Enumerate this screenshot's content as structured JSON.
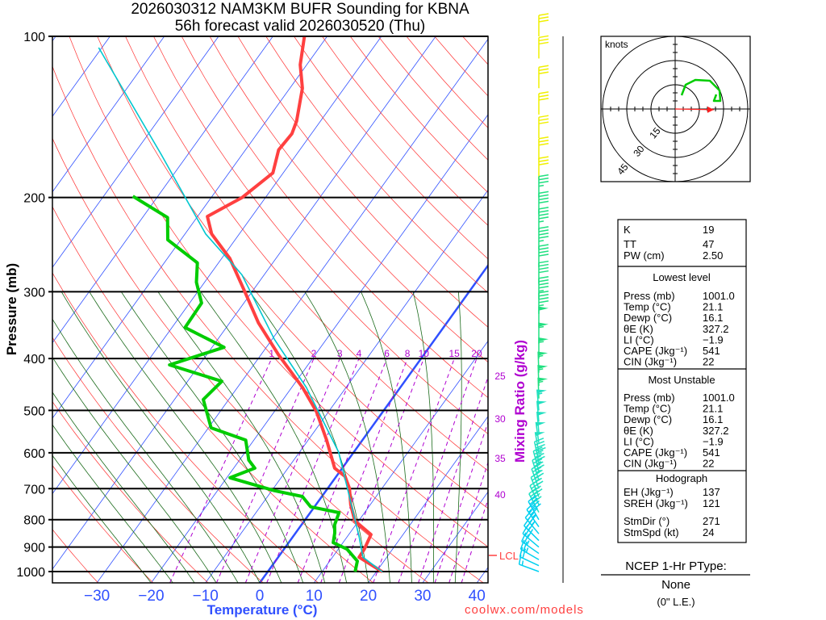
{
  "header": {
    "title_line1": "2026030312 NAM3KM BUFR Sounding for KBNA",
    "title_line2": "56h forecast valid 2026030520 (Thu)"
  },
  "footer": {
    "credit": "coolwx.com/models"
  },
  "colors": {
    "temperature": "#ff4040",
    "dewpoint": "#00cc00",
    "parcel": "#00c8d0",
    "isotherm": "#3050ff",
    "dry_adiabat": "#ff3030",
    "moist_adiabat": "#1a6a1a",
    "mixing_ratio": "#b000d0"
  },
  "chart_data": {
    "type": "line",
    "subtype": "skew-t log-p",
    "xlabel": "Temperature (°C)",
    "ylabel": "Pressure (mb)",
    "mixing_ratio_label": "Mixing Ratio (g/kg)",
    "lcl_label": "LCL",
    "lcl_pressure": 895,
    "pressure_ticks": [
      100,
      200,
      300,
      400,
      500,
      600,
      700,
      800,
      900,
      1000
    ],
    "temperature_ticks": [
      -30,
      -20,
      -10,
      0,
      10,
      20,
      30,
      40
    ],
    "pressure_range": [
      100,
      1050
    ],
    "mixing_ratio_lines": [
      1,
      2,
      3,
      4,
      6,
      8,
      10,
      15,
      20,
      25,
      30,
      35,
      40
    ],
    "series": [
      {
        "name": "Temperature",
        "points": [
          [
            100,
            -64.2
          ],
          [
            113,
            -61.2
          ],
          [
            125,
            -57.7
          ],
          [
            144,
            -54.4
          ],
          [
            152,
            -53.6
          ],
          [
            163,
            -53.9
          ],
          [
            180,
            -51.9
          ],
          [
            200,
            -54.3
          ],
          [
            217,
            -58.2
          ],
          [
            234,
            -55.1
          ],
          [
            260,
            -48.5
          ],
          [
            299,
            -41.5
          ],
          [
            343,
            -34.7
          ],
          [
            394,
            -26.7
          ],
          [
            453,
            -18.0
          ],
          [
            502,
            -12.3
          ],
          [
            568,
            -6.6
          ],
          [
            641,
            -1.4
          ],
          [
            664,
            1.6
          ],
          [
            699,
            4.0
          ],
          [
            750,
            6.4
          ],
          [
            804,
            9.3
          ],
          [
            853,
            14.1
          ],
          [
            908,
            14.8
          ],
          [
            940,
            14.9
          ],
          [
            972,
            18.2
          ],
          [
            1001,
            21.1
          ]
        ]
      },
      {
        "name": "Dewpoint",
        "points": [
          [
            199,
            -74.6
          ],
          [
            218,
            -65.4
          ],
          [
            240,
            -62.4
          ],
          [
            265,
            -53.9
          ],
          [
            288,
            -51.5
          ],
          [
            315,
            -47.8
          ],
          [
            350,
            -47.6
          ],
          [
            381,
            -37.8
          ],
          [
            411,
            -45.5
          ],
          [
            441,
            -33.7
          ],
          [
            477,
            -34.7
          ],
          [
            539,
            -29.5
          ],
          [
            568,
            -21.5
          ],
          [
            619,
            -18.3
          ],
          [
            641,
            -16.1
          ],
          [
            668,
            -19.4
          ],
          [
            706,
            -9.5
          ],
          [
            724,
            -3.6
          ],
          [
            757,
            -0.7
          ],
          [
            776,
            5.3
          ],
          [
            818,
            6.1
          ],
          [
            847,
            7.2
          ],
          [
            883,
            8.2
          ],
          [
            908,
            11.6
          ],
          [
            956,
            15.1
          ],
          [
            1001,
            16.1
          ]
        ]
      },
      {
        "name": "Parcel",
        "points": [
          [
            105,
            -100.6
          ],
          [
            166,
            -75
          ],
          [
            234,
            -56.2
          ],
          [
            279,
            -44.1
          ],
          [
            368,
            -29.6
          ],
          [
            453,
            -17.3
          ],
          [
            598,
            -2.8
          ],
          [
            861,
            12.2
          ],
          [
            940,
            15.6
          ],
          [
            1001,
            21.1
          ]
        ]
      }
    ],
    "winds": [
      [
        100,
        270,
        30
      ],
      [
        110,
        270,
        30
      ],
      [
        125,
        270,
        30
      ],
      [
        140,
        270,
        30
      ],
      [
        155,
        270,
        30
      ],
      [
        170,
        270,
        30
      ],
      [
        185,
        270,
        30
      ],
      [
        200,
        270,
        35
      ],
      [
        215,
        270,
        40
      ],
      [
        230,
        270,
        45
      ],
      [
        250,
        270,
        45
      ],
      [
        270,
        270,
        40
      ],
      [
        290,
        270,
        40
      ],
      [
        310,
        270,
        45
      ],
      [
        330,
        270,
        45
      ],
      [
        350,
        270,
        50
      ],
      [
        375,
        270,
        55
      ],
      [
        400,
        270,
        55
      ],
      [
        425,
        268,
        55
      ],
      [
        450,
        268,
        55
      ],
      [
        475,
        268,
        55
      ],
      [
        500,
        265,
        55
      ],
      [
        525,
        265,
        50
      ],
      [
        550,
        265,
        50
      ],
      [
        575,
        262,
        50
      ],
      [
        600,
        260,
        50
      ],
      [
        625,
        258,
        45
      ],
      [
        650,
        255,
        45
      ],
      [
        675,
        252,
        45
      ],
      [
        700,
        250,
        45
      ],
      [
        725,
        248,
        40
      ],
      [
        750,
        245,
        40
      ],
      [
        775,
        242,
        40
      ],
      [
        800,
        240,
        40
      ],
      [
        825,
        235,
        35
      ],
      [
        850,
        230,
        35
      ],
      [
        875,
        225,
        30
      ],
      [
        900,
        220,
        30
      ],
      [
        925,
        215,
        25
      ],
      [
        950,
        210,
        25
      ],
      [
        975,
        205,
        20
      ],
      [
        1000,
        200,
        15
      ]
    ]
  },
  "hodograph": {
    "units_label": "knots",
    "rings": [
      15,
      30,
      45
    ],
    "ring_labels": [
      "15",
      "30",
      "45"
    ],
    "curve_kt": [
      [
        4,
        8.5
      ],
      [
        6.5,
        15
      ],
      [
        12.5,
        18
      ],
      [
        21.5,
        17.5
      ],
      [
        27.5,
        11.5
      ],
      [
        28,
        5
      ],
      [
        24,
        5
      ],
      [
        25.5,
        9
      ]
    ],
    "storm_motion": {
      "direction_deg": 271,
      "speed_kt": 24
    }
  },
  "indices": {
    "top": [
      {
        "label": "K",
        "value": "19"
      },
      {
        "label": "TT",
        "value": "47"
      },
      {
        "label": "PW (cm)",
        "value": "2.50"
      }
    ],
    "lowest_level": {
      "title": "Lowest level",
      "rows": [
        {
          "label": "Press (mb)",
          "value": "1001.0"
        },
        {
          "label": "Temp (°C)",
          "value": "21.1"
        },
        {
          "label": "Dewp (°C)",
          "value": "16.1"
        },
        {
          "label": "θE (K)",
          "value": "327.2"
        },
        {
          "label": "LI (°C)",
          "value": "−1.9"
        },
        {
          "label": "CAPE (Jkg⁻¹)",
          "value": "541"
        },
        {
          "label": "CIN (Jkg⁻¹)",
          "value": "22"
        }
      ]
    },
    "most_unstable": {
      "title": "Most Unstable",
      "rows": [
        {
          "label": "Press (mb)",
          "value": "1001.0"
        },
        {
          "label": "Temp (°C)",
          "value": "21.1"
        },
        {
          "label": "Dewp (°C)",
          "value": "16.1"
        },
        {
          "label": "θE (K)",
          "value": "327.2"
        },
        {
          "label": "LI (°C)",
          "value": "−1.9"
        },
        {
          "label": "CAPE (Jkg⁻¹)",
          "value": "541"
        },
        {
          "label": "CIN (Jkg⁻¹)",
          "value": "22"
        }
      ]
    },
    "hodograph": {
      "title": "Hodograph",
      "rows": [
        {
          "label": "EH (Jkg⁻¹)",
          "value": "137"
        },
        {
          "label": "SREH (Jkg⁻¹)",
          "value": "121"
        },
        {
          "label": "StmDir (°)",
          "value": "271"
        },
        {
          "label": "StmSpd (kt)",
          "value": "24"
        }
      ]
    }
  },
  "ptype": {
    "title": "NCEP 1-Hr PType:",
    "value": "None",
    "amount": "(0\" L.E.)"
  }
}
